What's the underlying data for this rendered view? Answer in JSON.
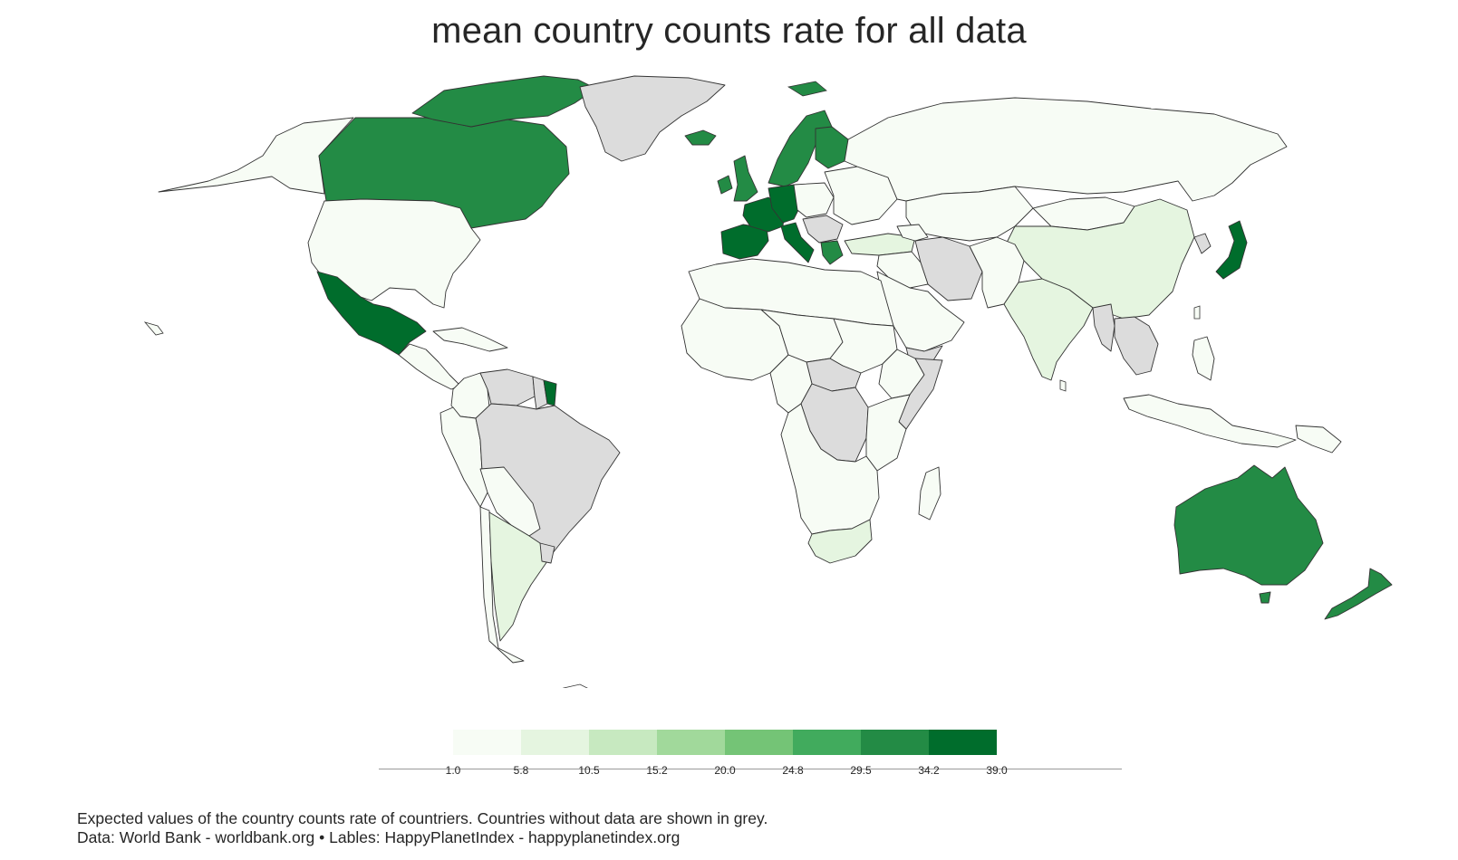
{
  "title": "mean country counts rate for all data",
  "legend": {
    "colors": [
      "#f7fcf5",
      "#e5f5e0",
      "#c7e9c0",
      "#a1d99b",
      "#74c476",
      "#41ab5d",
      "#238b45",
      "#006d2c"
    ],
    "ticks": [
      "1.0",
      "5.8",
      "10.5",
      "15.2",
      "20.0",
      "24.8",
      "29.5",
      "34.2",
      "39.0"
    ]
  },
  "no_data_color": "#dcdcdc",
  "regions": {
    "alaska": "#f7fcf5",
    "canada": "#238b45",
    "canada_arctic": "#238b45",
    "greenland": "#dcdcdc",
    "usa": "#f7fcf5",
    "mexico": "#006d2c",
    "central_america": "#f7fcf5",
    "caribbean": "#f7fcf5",
    "colombia": "#f7fcf5",
    "venezuela": "#dcdcdc",
    "guyana_suriname": "#dcdcdc",
    "french_guiana": "#006d2c",
    "ecuador_peru": "#f7fcf5",
    "brazil": "#dcdcdc",
    "bolivia_paraguay": "#f7fcf5",
    "chile": "#f7fcf5",
    "argentina": "#e5f5e0",
    "uruguay": "#dcdcdc",
    "iceland": "#238b45",
    "uk": "#238b45",
    "ireland": "#238b45",
    "scandinavia": "#238b45",
    "finland": "#238b45",
    "iberia": "#006d2c",
    "france": "#006d2c",
    "germany_benelux": "#006d2c",
    "italy": "#006d2c",
    "central_europe": "#f7fcf5",
    "balkans": "#dcdcdc",
    "greece": "#238b45",
    "eastern_europe": "#f7fcf5",
    "turkey": "#e5f5e0",
    "russia": "#f7fcf5",
    "kazakhstan_central_asia": "#f7fcf5",
    "caucasus": "#f7fcf5",
    "iran": "#dcdcdc",
    "iraq_syria": "#f7fcf5",
    "arabia": "#f7fcf5",
    "yemen": "#dcdcdc",
    "afghanistan_pakistan": "#f7fcf5",
    "india": "#e5f5e0",
    "china": "#e5f5e0",
    "mongolia": "#f7fcf5",
    "north_korea": "#dcdcdc",
    "japan": "#006d2c",
    "myanmar": "#dcdcdc",
    "indochina": "#dcdcdc",
    "malaysia_indonesia": "#f7fcf5",
    "philippines": "#f7fcf5",
    "png": "#f7fcf5",
    "north_africa": "#f7fcf5",
    "west_africa": "#f7fcf5",
    "sahel": "#f7fcf5",
    "sudan": "#f7fcf5",
    "horn_ethiopia": "#f7fcf5",
    "somalia": "#dcdcdc",
    "central_african_republic": "#dcdcdc",
    "drc": "#dcdcdc",
    "central_africa": "#f7fcf5",
    "east_africa": "#f7fcf5",
    "southern_africa": "#f7fcf5",
    "south_africa": "#e5f5e0",
    "madagascar": "#f7fcf5",
    "australia": "#238b45",
    "new_zealand": "#238b45"
  },
  "caption": {
    "line1": "Expected values of the country counts rate of countriers. Countries without data are shown in grey.",
    "line2": "Data: World Bank - worldbank.org • Lables: HappyPlanetIndex - happyplanetindex.org"
  }
}
